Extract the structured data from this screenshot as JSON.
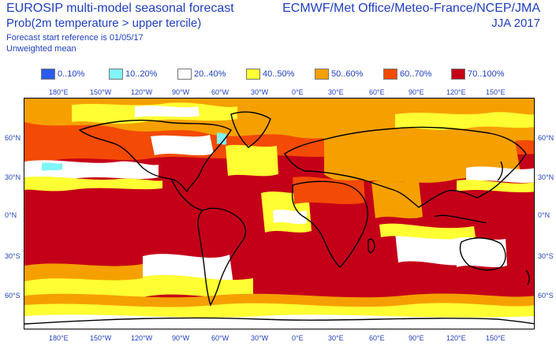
{
  "header": {
    "title_left": "EUROSIP multi-model seasonal forecast",
    "subtitle_left": "Prob(2m temperature > upper tercile)",
    "forecast_reference": "Forecast start reference is 01/05/17",
    "weighting": "Unweighted mean",
    "title_right": "ECMWF/Met Office/Meteo-France/NCEP/JMA",
    "period": "JJA 2017"
  },
  "legend": [
    {
      "label": "0..10%",
      "color": "#2a5cf0"
    },
    {
      "label": "10..20%",
      "color": "#7ff5f5"
    },
    {
      "label": "20..40%",
      "color": "#ffffff"
    },
    {
      "label": "40..50%",
      "color": "#ffff33"
    },
    {
      "label": "50..60%",
      "color": "#f5a000"
    },
    {
      "label": "60..70%",
      "color": "#f34a05"
    },
    {
      "label": "70..100%",
      "color": "#c40018"
    }
  ],
  "map": {
    "projection": "equirectangular",
    "lon_ticks_top": [
      "180°E",
      "150°W",
      "120°W",
      "90°W",
      "60°W",
      "30°W",
      "0°E",
      "30°E",
      "60°E",
      "90°E",
      "120°E",
      "150°E"
    ],
    "lon_ticks_bottom": [
      "180°E",
      "150°W",
      "120°W",
      "90°W",
      "60°W",
      "30°W",
      "0°E",
      "30°E",
      "60°E",
      "90°E",
      "120°E",
      "150°E"
    ],
    "lat_ticks_left": [
      "60°N",
      "30°N",
      "0°N",
      "30°S",
      "60°S"
    ],
    "lat_ticks_right": [
      "60°N",
      "30°N",
      "0°N",
      "30°S",
      "60°S"
    ]
  }
}
